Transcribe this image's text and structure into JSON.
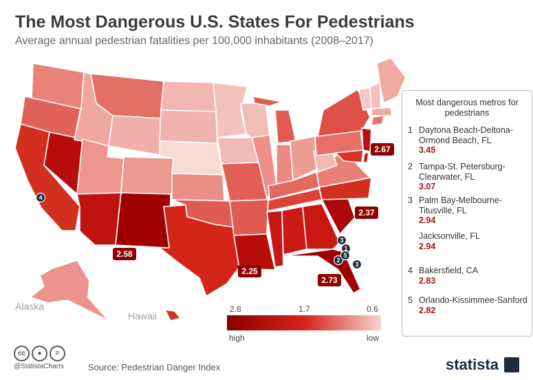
{
  "header": {
    "title": "The Most Dangerous U.S. States For Pedestrians",
    "subtitle": "Average annual pedestrian fatalities per 100,000 inhabitants (2008–2017)"
  },
  "map": {
    "inset_labels": {
      "alaska": "Alaska",
      "hawaii": "Hawaii"
    },
    "value_labels": [
      "2.67",
      "2.37",
      "2.58",
      "2.25",
      "2.73"
    ],
    "metro_markers": [
      "4",
      "3",
      "1",
      "2",
      "5",
      "3"
    ]
  },
  "scale": {
    "ticks": [
      "2.8",
      "1.7",
      "0.6"
    ],
    "high_label": "high",
    "low_label": "low",
    "colors": {
      "high": "#8a0000",
      "mid": "#d6231a",
      "low": "#f6d2d0"
    }
  },
  "legend": {
    "heading": "Most dangerous metros for pedestrians",
    "metros": [
      {
        "rank": "1",
        "name": "Daytona Beach-Deltona-Ormond Beach, FL",
        "value": "3.45"
      },
      {
        "rank": "2",
        "name": "Tampa-St. Petersburg-Clearwater, FL",
        "value": "3.07"
      },
      {
        "rank": "3",
        "name": "Palm Bay-Melbourne-Titusville, FL",
        "value": "2.94"
      },
      {
        "rank": "",
        "name": "Jacksonville, FL",
        "value": "2.94"
      },
      {
        "rank": "4",
        "name": "Bakersfield, CA",
        "value": "2.83"
      },
      {
        "rank": "5",
        "name": "Orlando-Kissimmee-Sanford",
        "value": "2.82"
      }
    ]
  },
  "footer": {
    "handle": "@StatistaCharts",
    "source": "Source: Pedestrian Danger Index",
    "brand": "statista"
  }
}
